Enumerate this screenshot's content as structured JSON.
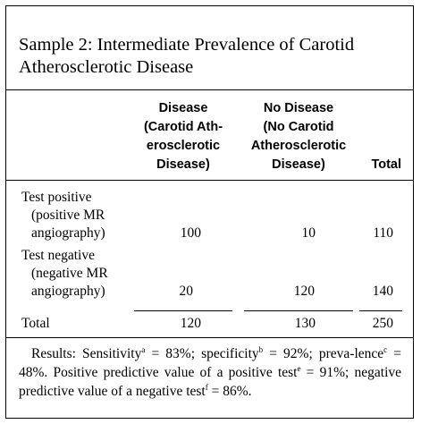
{
  "title_line1": "Sample 2: Intermediate Prevalence of Carotid",
  "title_line2": "Atherosclerotic Disease",
  "headers": {
    "disease": [
      "Disease",
      "(Carotid Ath-",
      "erosclerotic",
      "Disease)"
    ],
    "no_disease": [
      "No Disease",
      "(No Carotid",
      "Atherosclerotic",
      "Disease)"
    ],
    "total": "Total"
  },
  "rows": [
    {
      "label": [
        "Test positive",
        "(positive MR",
        "angiography)"
      ],
      "disease": "100",
      "no_disease": "10",
      "total": "110"
    },
    {
      "label": [
        "Test negative",
        "(negative MR",
        "angiography)"
      ],
      "disease": "20",
      "no_disease": "120",
      "total": "140"
    },
    {
      "label": [
        "Total"
      ],
      "disease": "120",
      "no_disease": "130",
      "total": "250"
    }
  ],
  "results": {
    "t1": "Results: Sensitivity",
    "s1": "a",
    "t2": " = 83%; specificity",
    "s2": "b",
    "t3": " = 92%; preva-lence",
    "s3": "c",
    "t4": " = 48%. Positive predictive value of a positive test",
    "s4": "e",
    "t5": " = 91%; negative predictive value of a negative test",
    "s5": "f",
    "t6": " = 86%."
  }
}
